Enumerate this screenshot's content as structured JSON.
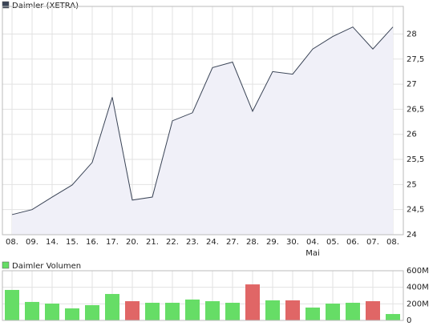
{
  "chart_data": [
    {
      "type": "area",
      "categories": [
        "08.",
        "09.",
        "14.",
        "15.",
        "16.",
        "17.",
        "20.",
        "21.",
        "22.",
        "23.",
        "24.",
        "27.",
        "28.",
        "29.",
        "30.",
        "04.",
        "05.",
        "06.",
        "07.",
        "08."
      ],
      "month_labels": [
        null,
        null,
        null,
        null,
        null,
        null,
        null,
        null,
        null,
        null,
        null,
        null,
        null,
        null,
        null,
        "Mai",
        null,
        null,
        null,
        null
      ],
      "series": [
        {
          "name": "Daimler (XETRA)",
          "color": "#3a4456",
          "fill": "#f0f0f8",
          "values": [
            24.4,
            24.5,
            24.75,
            24.99,
            25.44,
            26.74,
            24.69,
            24.75,
            26.27,
            26.43,
            27.33,
            27.44,
            26.46,
            27.25,
            27.2,
            27.7,
            27.95,
            28.14,
            27.7,
            28.14
          ]
        }
      ],
      "ylim": [
        24,
        28.55
      ],
      "yticks": [
        24,
        {
          "value": 24.5,
          "label": "24,5"
        },
        25,
        {
          "value": 25.5,
          "label": "25,5"
        },
        26,
        {
          "value": 26.5,
          "label": "26,5"
        },
        27,
        {
          "value": 27.5,
          "label": "27,5"
        },
        28
      ],
      "grid": true
    },
    {
      "type": "bar",
      "series": [
        {
          "name": "Daimler Volumen",
          "color": "#66dd66",
          "colors": [
            "#66dd66",
            "#66dd66",
            "#66dd66",
            "#66dd66",
            "#66dd66",
            "#66dd66",
            "#e06666",
            "#66dd66",
            "#66dd66",
            "#66dd66",
            "#66dd66",
            "#66dd66",
            "#e06666",
            "#66dd66",
            "#e06666",
            "#66dd66",
            "#66dd66",
            "#66dd66",
            "#e06666",
            "#66dd66"
          ],
          "values": [
            368,
            223,
            203,
            145,
            184,
            319,
            232,
            213,
            213,
            252,
            232,
            213,
            435,
            242,
            242,
            155,
            203,
            213,
            232,
            77
          ]
        }
      ],
      "ylim": [
        0,
        600
      ],
      "yticks": [
        0,
        {
          "value": 200,
          "label": "200M"
        },
        {
          "value": 400,
          "label": "400M"
        },
        {
          "value": 600,
          "label": "600M"
        }
      ],
      "grid": true
    }
  ]
}
